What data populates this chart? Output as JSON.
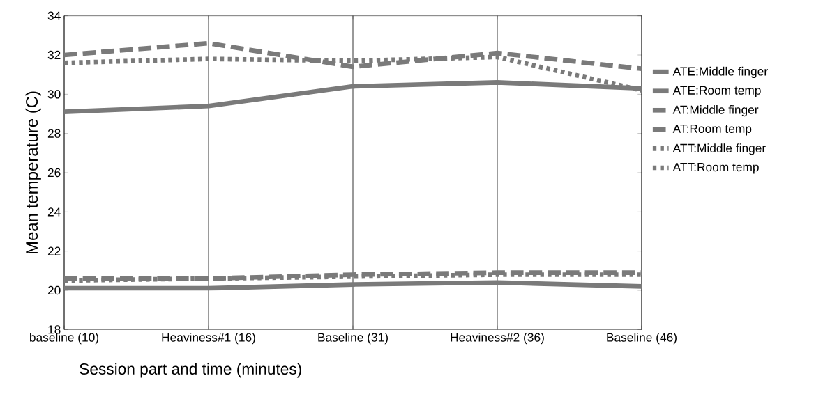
{
  "chart_data": {
    "type": "line",
    "xlabel": "Session part and time (minutes)",
    "ylabel": "Mean temperature (C)",
    "categories": [
      "baseline (10)",
      "Heaviness#1 (16)",
      "Baseline (31)",
      "Heaviness#2 (36)",
      "Baseline (46)"
    ],
    "series": [
      {
        "name": "ATE:Middle finger",
        "color": "#7a7a7a",
        "line_style": "solid",
        "values": [
          29.1,
          29.4,
          30.4,
          30.6,
          30.3
        ]
      },
      {
        "name": "ATE:Room temp",
        "color": "#7a7a7a",
        "line_style": "solid",
        "values": [
          20.1,
          20.1,
          20.3,
          20.4,
          20.2
        ]
      },
      {
        "name": "AT:Middle finger",
        "color": "#7a7a7a",
        "line_style": "dashed",
        "values": [
          32.0,
          32.6,
          31.4,
          32.1,
          31.3
        ]
      },
      {
        "name": "AT:Room temp",
        "color": "#7a7a7a",
        "line_style": "dashed",
        "values": [
          20.6,
          20.6,
          20.8,
          20.9,
          20.9
        ]
      },
      {
        "name": "ATT:Middle finger",
        "color": "#7a7a7a",
        "line_style": "dotted",
        "values": [
          31.6,
          31.8,
          31.7,
          31.9,
          30.2
        ]
      },
      {
        "name": "ATT:Room temp",
        "color": "#7a7a7a",
        "line_style": "dotted",
        "values": [
          20.5,
          20.6,
          20.7,
          20.8,
          20.8
        ]
      }
    ],
    "ylim": [
      18,
      34
    ],
    "yticks": [
      18,
      20,
      22,
      24,
      26,
      28,
      30,
      32,
      34
    ],
    "grid": "x",
    "legend": "right"
  }
}
